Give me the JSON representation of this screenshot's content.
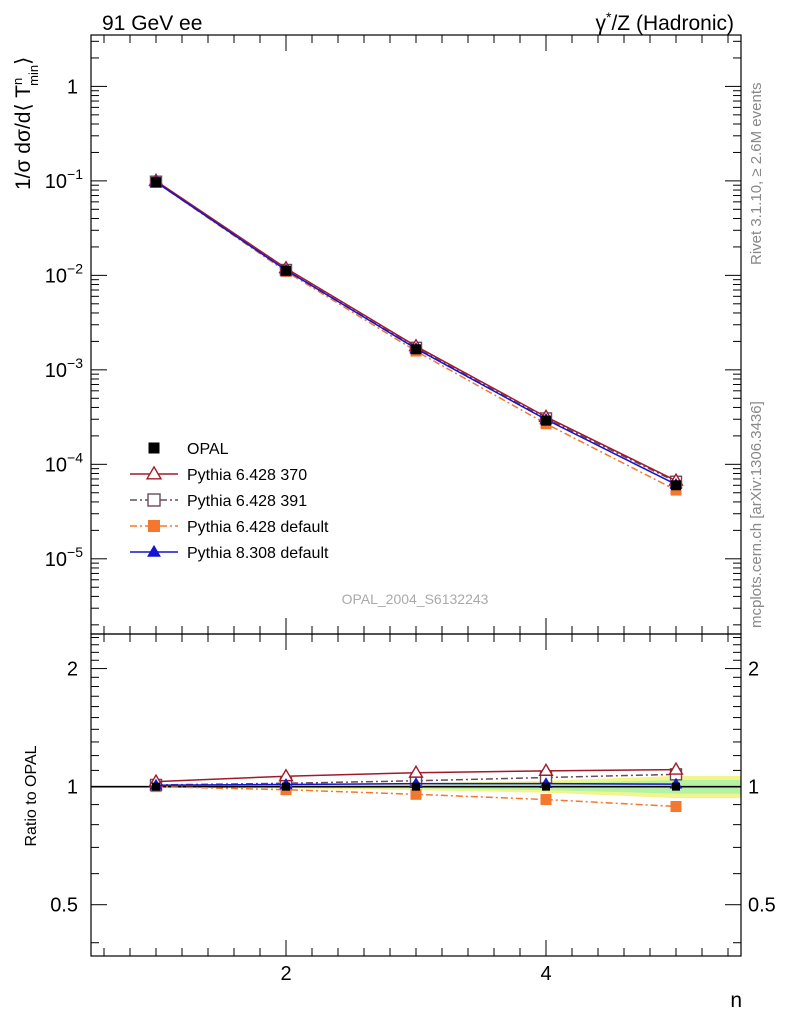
{
  "header": {
    "left_label": "91 GeV ee",
    "right_label_prefix": "γ",
    "right_label_sup": "*",
    "right_label_suffix": "/Z (Hadronic)"
  },
  "side_labels": {
    "rivet": "Rivet 3.1.10, ≥ 2.6M events",
    "mcplots": "mcplots.cern.ch [arXiv:1306.3436]"
  },
  "watermark": "OPAL_2004_S6132243",
  "ylabel_main": {
    "prefix": "1/σ dσ/d⟨ T",
    "sup": "n",
    "sub": "min",
    "suffix": "⟩"
  },
  "ylabel_ratio": "Ratio to OPAL",
  "xlabel": "n",
  "colors": {
    "opal": "#000000",
    "py370": "#a01a2c",
    "py391": "#6a4a5e",
    "pydef": "#f5762d",
    "py8": "#1414d2",
    "band_green": "#b6f2a4",
    "band_yellow": "#f2f58c"
  },
  "chart_data": [
    {
      "type": "line",
      "name": "main",
      "yscale": "log",
      "xlim": [
        0.5,
        5.5
      ],
      "ylim": [
        1.6e-06,
        3.5
      ],
      "yticks": [
        {
          "value": 1,
          "label": "1"
        },
        {
          "value": 0.1,
          "base": "10",
          "exp": "−1"
        },
        {
          "value": 0.01,
          "base": "10",
          "exp": "−2"
        },
        {
          "value": 0.001,
          "base": "10",
          "exp": "−3"
        },
        {
          "value": 0.0001,
          "base": "10",
          "exp": "−4"
        },
        {
          "value": 1e-05,
          "base": "10",
          "exp": "−5"
        }
      ],
      "legend_position": "bottom-left",
      "series": [
        {
          "name": "OPAL",
          "key": "opal",
          "style": "marker-only",
          "marker": "square-filled",
          "x": [
            1,
            2,
            3,
            4,
            5
          ],
          "y": [
            0.097,
            0.0112,
            0.00165,
            0.00029,
            6e-05
          ]
        },
        {
          "name": "Pythia 6.428 370",
          "key": "py370",
          "style": "solid",
          "marker": "triangle-open",
          "x": [
            1,
            2,
            3,
            4,
            5
          ],
          "y": [
            0.1,
            0.0119,
            0.00178,
            0.000318,
            6.72e-05
          ]
        },
        {
          "name": "Pythia 6.428 391",
          "key": "py391",
          "style": "dashdot",
          "marker": "square-open",
          "x": [
            1,
            2,
            3,
            4,
            5
          ],
          "y": [
            0.098,
            0.0114,
            0.00171,
            0.000306,
            6.54e-05
          ]
        },
        {
          "name": "Pythia 6.428 default",
          "key": "pydef",
          "style": "dashdot",
          "marker": "square-filled",
          "x": [
            1,
            2,
            3,
            4,
            5
          ],
          "y": [
            0.097,
            0.011,
            0.00158,
            0.000269,
            5.34e-05
          ]
        },
        {
          "name": "Pythia 8.308 default",
          "key": "py8",
          "style": "solid",
          "marker": "triangle-filled",
          "x": [
            1,
            2,
            3,
            4,
            5
          ],
          "y": [
            0.097,
            0.01135,
            0.00168,
            0.000298,
            6.12e-05
          ]
        }
      ]
    },
    {
      "type": "line",
      "name": "ratio",
      "yscale": "log",
      "xlim": [
        0.5,
        5.5
      ],
      "ylim": [
        0.37,
        2.45
      ],
      "xticks": [
        2,
        4
      ],
      "yticks": [
        0.5,
        1,
        2
      ],
      "band": {
        "x": [
          0.5,
          1,
          2,
          3,
          4,
          5,
          5.5
        ],
        "green_halfwidth": [
          0.004,
          0.004,
          0.006,
          0.01,
          0.02,
          0.04,
          0.04
        ],
        "yellow_halfwidth": [
          0.006,
          0.006,
          0.01,
          0.02,
          0.035,
          0.065,
          0.065
        ]
      },
      "series": [
        {
          "key": "py370",
          "x": [
            1,
            2,
            3,
            4,
            5
          ],
          "y": [
            1.03,
            1.063,
            1.085,
            1.097,
            1.105
          ]
        },
        {
          "key": "py391",
          "x": [
            1,
            2,
            3,
            4,
            5
          ],
          "y": [
            1.01,
            1.02,
            1.035,
            1.055,
            1.075
          ]
        },
        {
          "key": "pydef",
          "x": [
            1,
            2,
            3,
            4,
            5
          ],
          "y": [
            1.0,
            0.982,
            0.956,
            0.927,
            0.89
          ]
        },
        {
          "key": "py8",
          "x": [
            1,
            2,
            3,
            4,
            5
          ],
          "y": [
            1.008,
            1.013,
            1.018,
            1.018,
            1.015
          ]
        }
      ]
    }
  ]
}
